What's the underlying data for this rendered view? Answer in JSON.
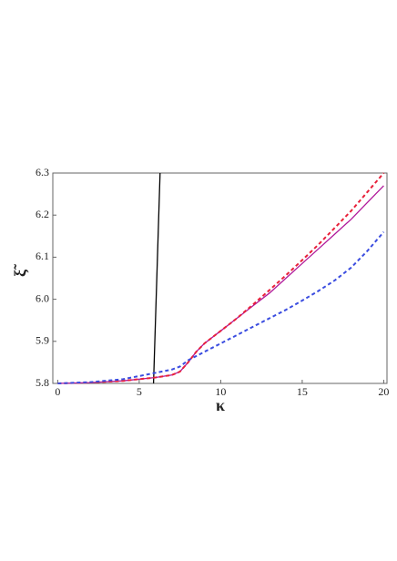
{
  "chart_data": {
    "type": "line",
    "xlabel": "κ",
    "ylabel": "ξ̃",
    "xlim": [
      -0.3,
      20.2
    ],
    "ylim": [
      5.8,
      6.3
    ],
    "xticks": [
      0,
      5,
      10,
      15,
      20
    ],
    "yticks": [
      5.8,
      5.9,
      {
        "value": 6,
        "label": "6.0"
      },
      6.1,
      6.2,
      6.3
    ],
    "grid": false,
    "series": [
      {
        "color": "#000000",
        "dash": false,
        "x": [
          5.88,
          6.28
        ],
        "values": [
          5.8,
          6.3
        ]
      },
      {
        "color": "#b0189a",
        "dash": false,
        "x": [
          0,
          2,
          4,
          6,
          7,
          7.5,
          8,
          8.5,
          9,
          10,
          11,
          12,
          13,
          14,
          15,
          16,
          17,
          18,
          19,
          20
        ],
        "values": [
          5.8,
          5.802,
          5.806,
          5.814,
          5.82,
          5.828,
          5.85,
          5.875,
          5.895,
          5.925,
          5.955,
          5.985,
          6.015,
          6.05,
          6.085,
          6.12,
          6.155,
          6.19,
          6.23,
          6.27
        ]
      },
      {
        "color": "#e8203a",
        "dash": true,
        "x": [
          0,
          2,
          4,
          6,
          7,
          7.5,
          8,
          8.5,
          9,
          10,
          11,
          12,
          13,
          14,
          15,
          16,
          17,
          18,
          19,
          20
        ],
        "values": [
          5.8,
          5.802,
          5.806,
          5.814,
          5.82,
          5.828,
          5.85,
          5.875,
          5.895,
          5.925,
          5.955,
          5.988,
          6.022,
          6.057,
          6.093,
          6.13,
          6.17,
          6.21,
          6.255,
          6.3
        ]
      },
      {
        "color": "#3b4de0",
        "dash": true,
        "x": [
          0,
          2,
          4,
          6,
          7,
          7.5,
          8,
          9,
          10,
          11,
          12,
          13,
          14,
          15,
          16,
          17,
          18,
          19,
          20
        ],
        "values": [
          5.8,
          5.803,
          5.81,
          5.825,
          5.833,
          5.84,
          5.855,
          5.875,
          5.895,
          5.915,
          5.935,
          5.955,
          5.975,
          5.997,
          6.02,
          6.045,
          6.075,
          6.115,
          6.16
        ]
      }
    ]
  }
}
